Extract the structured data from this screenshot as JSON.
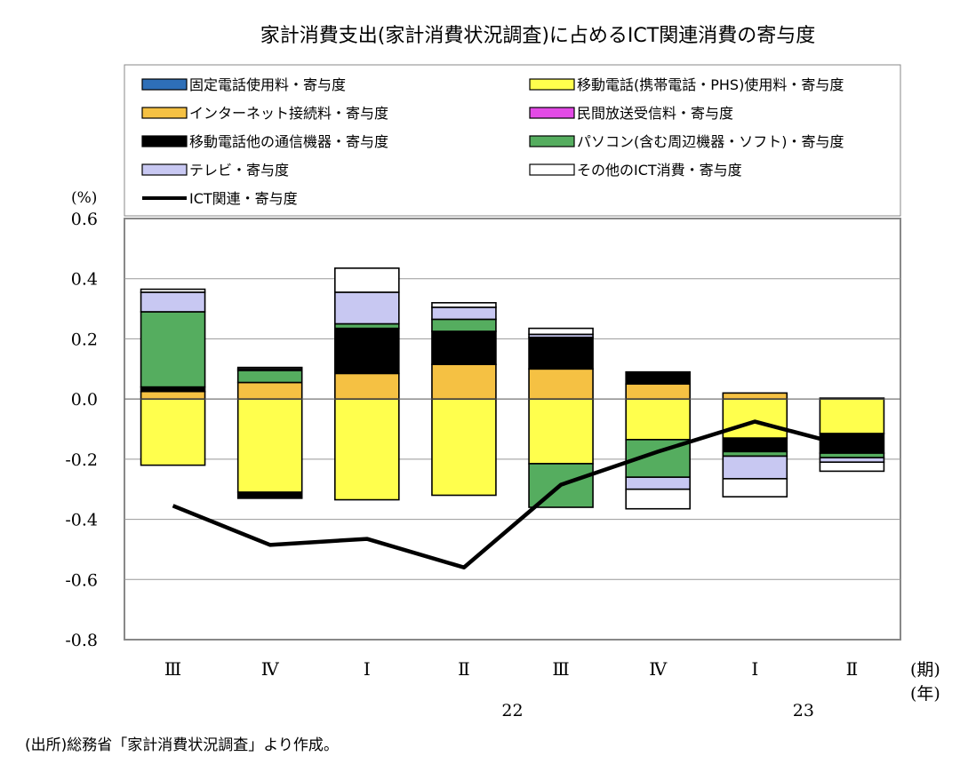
{
  "chart_data": {
    "type": "bar",
    "stacked": true,
    "title": "家計消費支出(家計消費状況調査)に占めるICT関連消費の寄与度",
    "ylabel": "(%)",
    "xlabel_period": "(期)",
    "xlabel_year": "(年)",
    "ylim": [
      -0.8,
      0.6
    ],
    "yticks": [
      "0.6",
      "0.4",
      "0.2",
      "0.0",
      "-0.2",
      "-0.4",
      "-0.6",
      "-0.8"
    ],
    "categories": [
      "Ⅲ",
      "Ⅳ",
      "Ⅰ",
      "Ⅱ",
      "Ⅲ",
      "Ⅳ",
      "Ⅰ",
      "Ⅱ"
    ],
    "year_labels": [
      {
        "label": "22",
        "index": 3.5
      },
      {
        "label": "23",
        "index": 6.5
      }
    ],
    "grid": true,
    "legend_position": "top",
    "series": [
      {
        "name": "固定電話使用料・寄与度",
        "color": "#2e6fb8",
        "values": [
          0.0,
          0.0,
          0.0,
          0.0,
          0.0,
          0.0,
          0.0,
          0.0
        ]
      },
      {
        "name": "移動電話(携帯電話・PHS)使用料・寄与度",
        "color": "#ffff4d",
        "values": [
          -0.22,
          -0.31,
          -0.335,
          -0.32,
          -0.215,
          -0.135,
          -0.13,
          -0.115
        ]
      },
      {
        "name": "インターネット接続料・寄与度",
        "color": "#f5c143",
        "values": [
          0.025,
          0.055,
          0.085,
          0.115,
          0.1,
          0.05,
          0.02,
          0.003
        ]
      },
      {
        "name": "民間放送受信料・寄与度",
        "color": "#e34ae6",
        "values": [
          0.0,
          0.0,
          0.0,
          0.0,
          0.0,
          0.0,
          0.0,
          0.0
        ]
      },
      {
        "name": "移動電話他の通信機器・寄与度",
        "color": "#000000",
        "values": [
          0.015,
          -0.02,
          0.15,
          0.11,
          0.105,
          0.04,
          -0.045,
          -0.065
        ]
      },
      {
        "name": "パソコン(含む周辺機器・ソフト)・寄与度",
        "color": "#55ad5f",
        "values": [
          0.25,
          0.04,
          0.015,
          0.04,
          -0.145,
          -0.125,
          -0.015,
          -0.015
        ]
      },
      {
        "name": "テレビ・寄与度",
        "color": "#c8c8f2",
        "values": [
          0.065,
          0.005,
          0.105,
          0.04,
          0.01,
          -0.04,
          -0.075,
          -0.015
        ]
      },
      {
        "name": "その他のICT消費・寄与度",
        "color": "#ffffff",
        "values": [
          0.01,
          0.005,
          0.08,
          0.015,
          0.02,
          -0.065,
          -0.06,
          -0.03
        ]
      }
    ],
    "line_series": {
      "name": "ICT関連・寄与度",
      "color": "#000000",
      "values": [
        -0.355,
        -0.485,
        -0.465,
        -0.56,
        -0.285,
        -0.175,
        -0.075,
        -0.16
      ]
    }
  },
  "source_note": "(出所)総務省「家計消費状況調査」より作成。"
}
